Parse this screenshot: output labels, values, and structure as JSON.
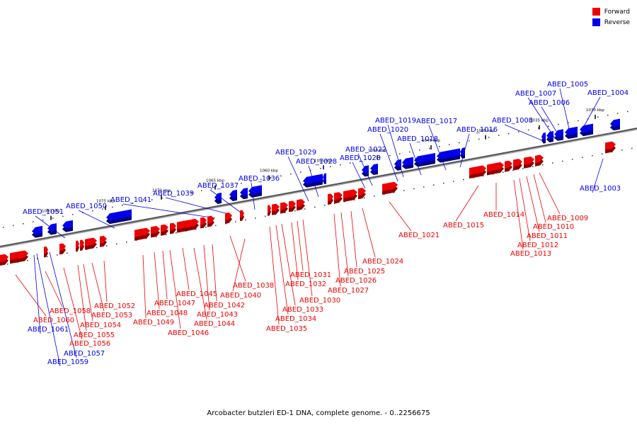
{
  "legend": {
    "forward": {
      "label": "Forward",
      "color": "#ee0000"
    },
    "reverse": {
      "label": "Reverse",
      "color": "#0000ee"
    }
  },
  "caption": "Arcobacter butzleri ED-1 DNA, complete genome. - 0..2256675",
  "axis_ticks": [
    "1030 kbp",
    "1035 kbp",
    "1040 kbp",
    "1045 kbp",
    "1050 kbp",
    "1055 kbp",
    "1060 kbp",
    "1065 kbp",
    "1070 kbp",
    "1075 kbp",
    "1080 kbp"
  ],
  "genes_reverse": [
    "ABED_1003",
    "ABED_1004",
    "ABED_1005",
    "ABED_1006",
    "ABED_1007",
    "ABED_1008",
    "ABED_1016",
    "ABED_1017",
    "ABED_1018",
    "ABED_1019",
    "ABED_1020",
    "ABED_1022",
    "ABED_1023",
    "ABED_1028",
    "ABED_1029",
    "ABED_1036",
    "ABED_1037",
    "ABED_1039",
    "ABED_1041",
    "ABED_1050",
    "ABED_1051",
    "ABED_1057",
    "ABED_1059",
    "ABED_1061"
  ],
  "genes_forward": [
    "ABED_1009",
    "ABED_1010",
    "ABED_1011",
    "ABED_1012",
    "ABED_1013",
    "ABED_1014",
    "ABED_1015",
    "ABED_1021",
    "ABED_1024",
    "ABED_1025",
    "ABED_1026",
    "ABED_1027",
    "ABED_1030",
    "ABED_1031",
    "ABED_1032",
    "ABED_1033",
    "ABED_1034",
    "ABED_1035",
    "ABED_1038",
    "ABED_1040",
    "ABED_1042",
    "ABED_1043",
    "ABED_1044",
    "ABED_1045",
    "ABED_1046",
    "ABED_1047",
    "ABED_1048",
    "ABED_1049",
    "ABED_1052",
    "ABED_1053",
    "ABED_1054",
    "ABED_1055",
    "ABED_1056",
    "ABED_1058",
    "ABED_1060"
  ]
}
